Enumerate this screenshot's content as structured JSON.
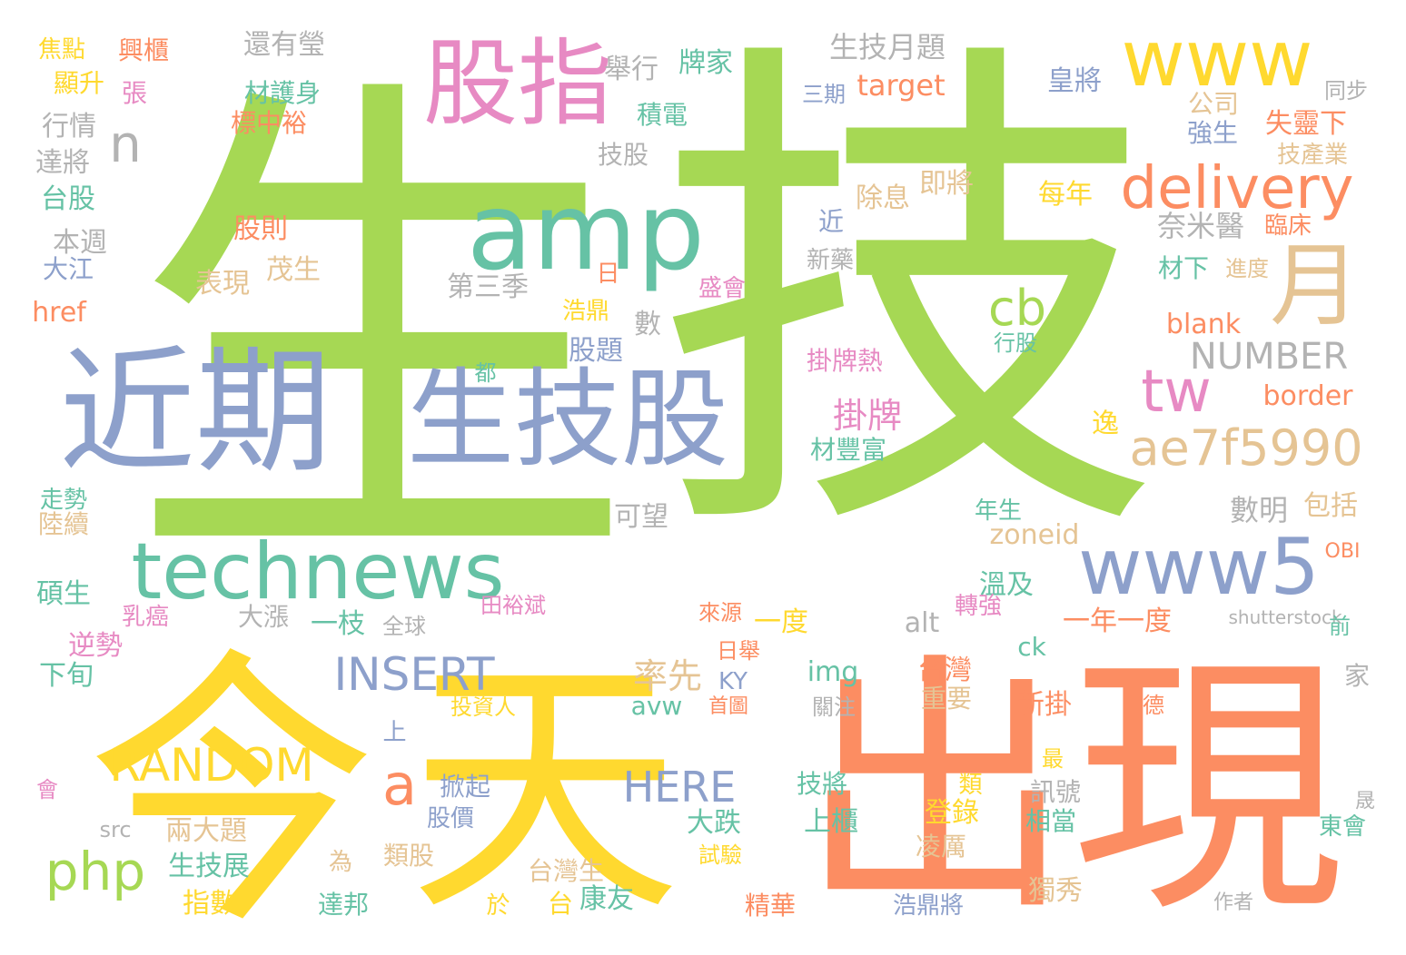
{
  "palette": {
    "green": "#a6d854",
    "yellow": "#ffd92f",
    "orange": "#fc8d62",
    "teal": "#66c2a5",
    "blue": "#8da0cb",
    "pink": "#e78ac3",
    "tan": "#e5c494",
    "gray": "#b3b3b3"
  },
  "words": [
    "生",
    "技",
    "今",
    "天",
    "出現",
    "近期",
    "生技股",
    "amp",
    "股指",
    "www",
    "technews",
    "www5",
    "delivery",
    "tw",
    "ae7f5990",
    "月",
    "n",
    "cb",
    "php",
    "a",
    "RANDOM",
    "INSERT",
    "HERE",
    "NUMBER",
    "掛牌",
    "率先",
    "表現",
    "茂生",
    "第三季",
    "焦點",
    "興櫃",
    "顯升",
    "張",
    "行情",
    "達將",
    "台股",
    "本週",
    "大江",
    "href",
    "走勢",
    "陸續",
    "碩生",
    "乳癌",
    "逆勢",
    "下旬",
    "會",
    "還有瑩",
    "材護身",
    "標中裕",
    "舉行",
    "牌家",
    "積電",
    "技股",
    "生技月題",
    "target",
    "三期",
    "皇將",
    "同步",
    "公司",
    "強生",
    "失靈下",
    "技產業",
    "即將",
    "除息",
    "每年",
    "奈米醫",
    "臨床",
    "股則",
    "近",
    "新藥",
    "日",
    "盛會",
    "浩鼎",
    "數",
    "股題",
    "都",
    "掛牌熱",
    "材豐富",
    "行股",
    "blank",
    "border",
    "逸",
    "進度",
    "材下",
    "數明",
    "包括",
    "zoneid",
    "OBI",
    "可望",
    "年生",
    "溫及",
    "轉強",
    "shutterstock",
    "前",
    "一年一度",
    "alt",
    "一度",
    "一枝",
    "全球",
    "大漲",
    "田裕斌",
    "來源",
    "ck",
    "img",
    "avw",
    "台灣",
    "重要",
    "新掛",
    "KY",
    "日舉",
    "首圖",
    "關注",
    "投資人",
    "上",
    "掀起",
    "股價",
    "src",
    "兩大題",
    "為",
    "類股",
    "指數",
    "生技展",
    "達邦",
    "於",
    "台",
    "康友",
    "台灣生",
    "試驗",
    "精華",
    "技將",
    "上櫃",
    "大跌",
    "類",
    "登錄",
    "凌厲",
    "訊號",
    "相當",
    "最",
    "獨秀",
    "浩鼎將",
    "家",
    "德",
    "晟",
    "東會",
    "作者"
  ]
}
